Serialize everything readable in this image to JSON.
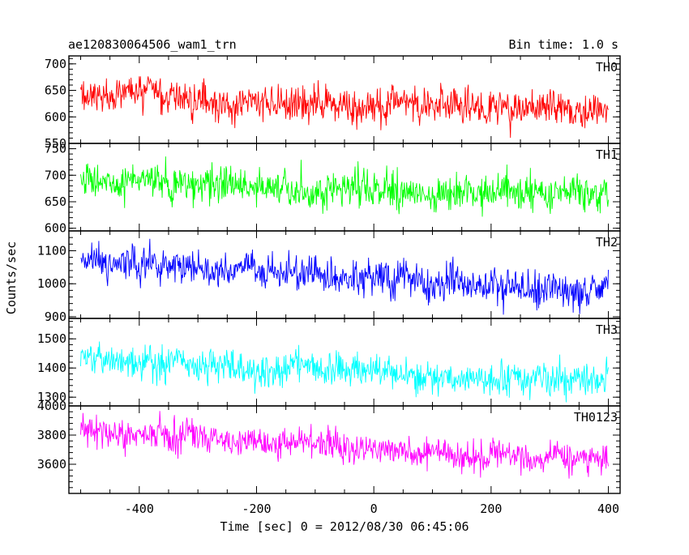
{
  "header": {
    "title": "ae120830064506_wam1_trn",
    "bin_time": "Bin time: 1.0 s"
  },
  "chart_data": {
    "type": "line",
    "title": "ae120830064506_wam1_trn",
    "xlabel": "Time [sec] 0 = 2012/08/30 06:45:06",
    "ylabel": "Counts/sec",
    "xlim": [
      -520,
      420
    ],
    "x_data_range": [
      -500,
      400
    ],
    "x_ticks": [
      -400,
      -200,
      0,
      200,
      400
    ],
    "bin_seconds": 1.0,
    "grid": false,
    "legend": "none",
    "panels": [
      {
        "name": "TH0",
        "color": "#ff0000",
        "ylim": [
          550,
          715
        ],
        "y_ticks": [
          550,
          600,
          650,
          700
        ],
        "start_level": 645,
        "end_level": 620,
        "noise_amplitude": 28,
        "samples": [
          [
            -500,
            645
          ],
          [
            -400,
            640
          ],
          [
            -300,
            633
          ],
          [
            -200,
            630
          ],
          [
            -100,
            628
          ],
          [
            0,
            625
          ],
          [
            100,
            623
          ],
          [
            200,
            622
          ],
          [
            300,
            621
          ],
          [
            400,
            620
          ]
        ]
      },
      {
        "name": "TH1",
        "color": "#00ff00",
        "ylim": [
          595,
          760
        ],
        "y_ticks": [
          600,
          650,
          700,
          750
        ],
        "start_level": 690,
        "end_level": 660,
        "noise_amplitude": 28,
        "samples": [
          [
            -500,
            690
          ],
          [
            -400,
            688
          ],
          [
            -300,
            683
          ],
          [
            -200,
            680
          ],
          [
            -100,
            677
          ],
          [
            0,
            673
          ],
          [
            100,
            669
          ],
          [
            200,
            665
          ],
          [
            300,
            662
          ],
          [
            400,
            660
          ]
        ]
      },
      {
        "name": "TH2",
        "color": "#0000ff",
        "ylim": [
          895,
          1160
        ],
        "y_ticks": [
          900,
          1000,
          1100
        ],
        "start_level": 1070,
        "end_level": 985,
        "noise_amplitude": 45,
        "samples": [
          [
            -500,
            1070
          ],
          [
            -400,
            1060
          ],
          [
            -300,
            1045
          ],
          [
            -200,
            1033
          ],
          [
            -100,
            1025
          ],
          [
            0,
            1012
          ],
          [
            100,
            1003
          ],
          [
            200,
            995
          ],
          [
            300,
            990
          ],
          [
            400,
            985
          ]
        ]
      },
      {
        "name": "TH3",
        "color": "#00ffff",
        "ylim": [
          1270,
          1570
        ],
        "y_ticks": [
          1300,
          1400,
          1500
        ],
        "start_level": 1430,
        "end_level": 1360,
        "noise_amplitude": 48,
        "samples": [
          [
            -500,
            1430
          ],
          [
            -400,
            1425
          ],
          [
            -300,
            1415
          ],
          [
            -200,
            1405
          ],
          [
            -100,
            1398
          ],
          [
            0,
            1390
          ],
          [
            100,
            1382
          ],
          [
            200,
            1373
          ],
          [
            300,
            1366
          ],
          [
            400,
            1360
          ]
        ]
      },
      {
        "name": "TH0123",
        "color": "#ff00ff",
        "ylim": [
          3400,
          4000
        ],
        "y_ticks": [
          3600,
          3800,
          4000
        ],
        "start_level": 3820,
        "end_level": 3620,
        "noise_amplitude": 85,
        "samples": [
          [
            -500,
            3820
          ],
          [
            -400,
            3805
          ],
          [
            -300,
            3785
          ],
          [
            -200,
            3760
          ],
          [
            -100,
            3735
          ],
          [
            0,
            3710
          ],
          [
            100,
            3685
          ],
          [
            200,
            3660
          ],
          [
            300,
            3640
          ],
          [
            400,
            3620
          ]
        ]
      }
    ]
  }
}
